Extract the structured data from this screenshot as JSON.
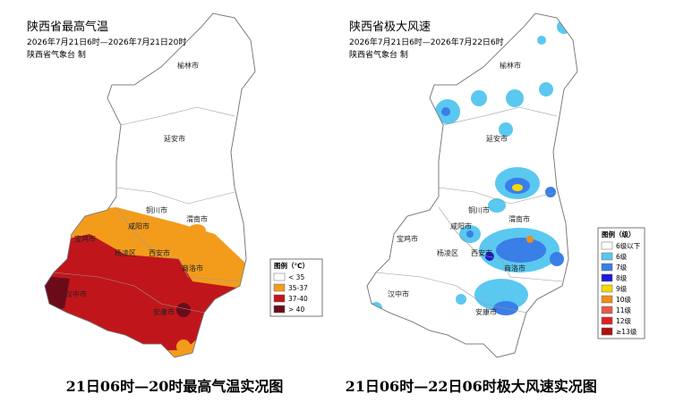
{
  "maps": [
    {
      "title": "陕西省最高气温",
      "period": "2026年7月21日6时—2026年7月21日20时",
      "issuer": "陕西省气象台 制",
      "legend": {
        "title": "图例（℃）",
        "items": [
          {
            "label": "< 35",
            "color": "#ffffff"
          },
          {
            "label": "35-37",
            "color": "#f39c1c"
          },
          {
            "label": "37-40",
            "color": "#c0161b"
          },
          {
            "label": "> 40",
            "color": "#6b0b1a"
          }
        ]
      },
      "cities": [
        "榆林市",
        "延安市",
        "铜川市",
        "渭南市",
        "咸阳市",
        "宝鸡市",
        "杨凌区",
        "西安市",
        "商洛市",
        "汉中市",
        "安康市"
      ],
      "caption": "21日06时—20时最高气温实况图"
    },
    {
      "title": "陕西省极大风速",
      "period": "2026年7月21日6时—2026年7月22日6时",
      "issuer": "陕西省气象台 制",
      "legend": {
        "title": "图例（级）",
        "items": [
          {
            "label": "6级以下",
            "color": "#ffffff"
          },
          {
            "label": "6级",
            "color": "#5bc8f0"
          },
          {
            "label": "7级",
            "color": "#3a7ee8"
          },
          {
            "label": "8级",
            "color": "#1c1cd6"
          },
          {
            "label": "9级",
            "color": "#f5d800"
          },
          {
            "label": "10级",
            "color": "#f08c1c"
          },
          {
            "label": "11级",
            "color": "#e25b4b"
          },
          {
            "label": "12级",
            "color": "#e02020"
          },
          {
            "label": "≥13级",
            "color": "#b01010"
          }
        ]
      },
      "cities": [
        "榆林市",
        "延安市",
        "铜川市",
        "渭南市",
        "咸阳市",
        "宝鸡市",
        "杨凌区",
        "西安市",
        "商洛市",
        "汉中市",
        "安康市"
      ],
      "caption": "21日06时—22日06时极大风速实况图"
    }
  ]
}
